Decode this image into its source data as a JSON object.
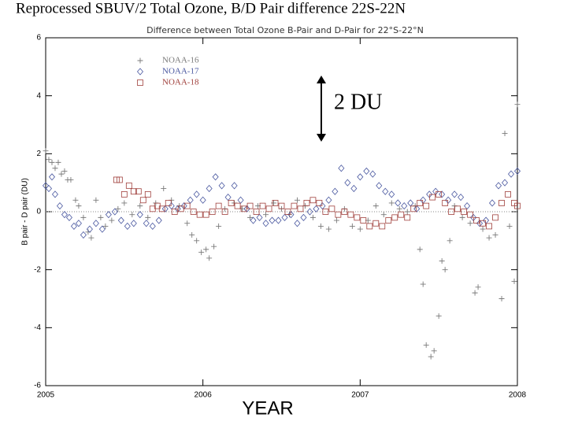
{
  "chart_data": {
    "type": "scatter",
    "title": "Reprocessed SBUV/2 Total Ozone, B/D Pair difference 22S-22N",
    "subtitle": "Difference between Total Ozone B-Pair and D-Pair for 22°S-22°N",
    "x_label": "YEAR",
    "y_label": "B pair - D pair (DU)",
    "annotation": "2 DU",
    "xlim": [
      2005,
      2008
    ],
    "xticks": [
      2005,
      2006,
      2007,
      2008
    ],
    "ylim": [
      -6,
      6
    ],
    "yticks": [
      -6,
      -4,
      -2,
      0,
      2,
      4,
      6
    ],
    "zero_line": true,
    "series": [
      {
        "name": "NOAA-16",
        "color": "#7a7a7a",
        "marker": "plus",
        "x": [
          2005.0,
          2005.02,
          2005.04,
          2005.06,
          2005.08,
          2005.1,
          2005.12,
          2005.14,
          2005.16,
          2005.19,
          2005.21,
          2005.24,
          2005.27,
          2005.29,
          2005.32,
          2005.35,
          2005.38,
          2005.42,
          2005.46,
          2005.5,
          2005.55,
          2005.6,
          2005.65,
          2005.7,
          2005.75,
          2005.8,
          2005.85,
          2005.9,
          2005.93,
          2005.96,
          2005.99,
          2006.02,
          2006.04,
          2006.07,
          2006.1,
          2006.14,
          2006.2,
          2006.25,
          2006.3,
          2006.35,
          2006.4,
          2006.45,
          2006.5,
          2006.55,
          2006.6,
          2006.65,
          2006.7,
          2006.75,
          2006.8,
          2006.85,
          2006.9,
          2006.95,
          2007.0,
          2007.05,
          2007.1,
          2007.15,
          2007.2,
          2007.25,
          2007.3,
          2007.35,
          2007.38,
          2007.4,
          2007.42,
          2007.45,
          2007.47,
          2007.5,
          2007.52,
          2007.54,
          2007.57,
          2007.6,
          2007.65,
          2007.7,
          2007.73,
          2007.75,
          2007.78,
          2007.82,
          2007.86,
          2007.9,
          2007.92,
          2007.95,
          2007.98,
          2008.0
        ],
        "values": [
          2.1,
          1.8,
          1.7,
          1.5,
          1.7,
          1.3,
          1.4,
          1.1,
          1.1,
          0.4,
          0.2,
          -0.2,
          -0.7,
          -0.9,
          0.4,
          -0.2,
          -0.5,
          -0.3,
          0.1,
          0.3,
          -0.1,
          0.2,
          -0.2,
          0.3,
          0.8,
          0.4,
          0.2,
          -0.4,
          -0.8,
          -1.0,
          -1.4,
          -1.3,
          -1.6,
          -1.2,
          -0.5,
          0.1,
          0.3,
          0.1,
          -0.2,
          0.2,
          -0.1,
          0.3,
          0.1,
          -0.1,
          0.4,
          0.2,
          -0.2,
          -0.5,
          -0.6,
          -0.3,
          0.1,
          -0.5,
          -0.6,
          -0.3,
          0.2,
          -0.1,
          0.3,
          0.1,
          0.0,
          0.2,
          -1.3,
          -2.5,
          -4.6,
          -5.0,
          -4.8,
          -3.6,
          -1.7,
          -2.0,
          -1.0,
          0.2,
          -0.2,
          -0.4,
          -2.8,
          -2.6,
          -0.6,
          -0.9,
          -0.8,
          -3.0,
          2.7,
          -0.5,
          -2.4,
          3.7
        ]
      },
      {
        "name": "NOAA-17",
        "color": "#4a58a0",
        "marker": "diamond",
        "x": [
          2005.0,
          2005.02,
          2005.04,
          2005.06,
          2005.09,
          2005.12,
          2005.15,
          2005.18,
          2005.21,
          2005.24,
          2005.28,
          2005.32,
          2005.36,
          2005.4,
          2005.44,
          2005.48,
          2005.52,
          2005.56,
          2005.6,
          2005.64,
          2005.68,
          2005.72,
          2005.76,
          2005.8,
          2005.84,
          2005.88,
          2005.92,
          2005.96,
          2006.0,
          2006.04,
          2006.08,
          2006.12,
          2006.16,
          2006.2,
          2006.24,
          2006.28,
          2006.32,
          2006.36,
          2006.4,
          2006.44,
          2006.48,
          2006.52,
          2006.56,
          2006.6,
          2006.64,
          2006.68,
          2006.72,
          2006.76,
          2006.8,
          2006.84,
          2006.88,
          2006.92,
          2006.96,
          2007.0,
          2007.04,
          2007.08,
          2007.12,
          2007.16,
          2007.2,
          2007.24,
          2007.28,
          2007.32,
          2007.36,
          2007.4,
          2007.44,
          2007.48,
          2007.52,
          2007.56,
          2007.6,
          2007.64,
          2007.68,
          2007.72,
          2007.76,
          2007.8,
          2007.84,
          2007.88,
          2007.92,
          2007.96,
          2008.0
        ],
        "values": [
          0.9,
          0.8,
          1.2,
          0.6,
          0.2,
          -0.1,
          -0.2,
          -0.5,
          -0.4,
          -0.8,
          -0.6,
          -0.4,
          -0.6,
          -0.1,
          0.0,
          -0.3,
          -0.5,
          -0.4,
          -0.1,
          -0.4,
          -0.5,
          -0.3,
          0.1,
          0.2,
          0.1,
          0.2,
          0.4,
          0.6,
          0.4,
          0.8,
          1.2,
          0.9,
          0.5,
          0.9,
          0.4,
          0.1,
          -0.3,
          -0.2,
          -0.4,
          -0.3,
          -0.3,
          -0.2,
          -0.1,
          -0.4,
          -0.2,
          0.0,
          0.1,
          0.2,
          0.4,
          0.7,
          1.5,
          1.0,
          0.8,
          1.2,
          1.4,
          1.3,
          0.9,
          0.7,
          0.6,
          0.3,
          0.2,
          0.3,
          0.1,
          0.4,
          0.6,
          0.7,
          0.6,
          0.4,
          0.6,
          0.5,
          0.2,
          -0.2,
          -0.4,
          -0.3,
          0.3,
          0.9,
          1.0,
          1.3,
          1.4
        ]
      },
      {
        "name": "NOAA-18",
        "color": "#a0403c",
        "marker": "square",
        "x": [
          2005.45,
          2005.47,
          2005.5,
          2005.53,
          2005.56,
          2005.59,
          2005.62,
          2005.65,
          2005.68,
          2005.71,
          2005.74,
          2005.78,
          2005.82,
          2005.86,
          2005.9,
          2005.94,
          2005.98,
          2006.02,
          2006.06,
          2006.1,
          2006.14,
          2006.18,
          2006.22,
          2006.26,
          2006.3,
          2006.34,
          2006.38,
          2006.42,
          2006.46,
          2006.5,
          2006.54,
          2006.58,
          2006.62,
          2006.66,
          2006.7,
          2006.74,
          2006.78,
          2006.82,
          2006.86,
          2006.9,
          2006.94,
          2006.98,
          2007.02,
          2007.06,
          2007.1,
          2007.14,
          2007.18,
          2007.22,
          2007.26,
          2007.3,
          2007.34,
          2007.38,
          2007.42,
          2007.46,
          2007.5,
          2007.54,
          2007.58,
          2007.62,
          2007.66,
          2007.7,
          2007.74,
          2007.78,
          2007.82,
          2007.86,
          2007.9,
          2007.94,
          2007.98,
          2008.0
        ],
        "values": [
          1.1,
          1.1,
          0.6,
          0.9,
          0.7,
          0.7,
          0.4,
          0.6,
          0.1,
          0.2,
          0.1,
          0.3,
          0.0,
          0.1,
          0.2,
          0.0,
          -0.1,
          -0.1,
          0.0,
          0.2,
          0.0,
          0.3,
          0.2,
          0.1,
          0.2,
          0.0,
          0.2,
          0.1,
          0.3,
          0.2,
          0.0,
          0.2,
          0.1,
          0.3,
          0.4,
          0.3,
          0.0,
          0.1,
          -0.1,
          0.0,
          -0.1,
          -0.2,
          -0.3,
          -0.5,
          -0.4,
          -0.5,
          -0.3,
          -0.2,
          -0.1,
          -0.2,
          0.1,
          0.3,
          0.2,
          0.5,
          0.6,
          0.3,
          0.0,
          0.1,
          0.0,
          -0.1,
          -0.3,
          -0.4,
          -0.5,
          -0.2,
          0.3,
          0.6,
          0.3,
          0.2
        ]
      }
    ]
  }
}
